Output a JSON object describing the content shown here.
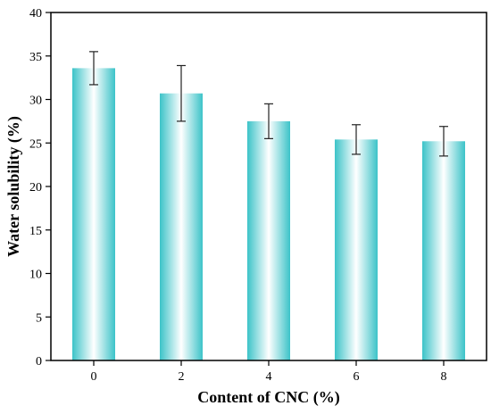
{
  "chart_data": {
    "type": "bar",
    "title": "",
    "xlabel": "Content of CNC (%)",
    "ylabel": "Water solubility (%)",
    "categories": [
      "0",
      "2",
      "4",
      "6",
      "8"
    ],
    "values": [
      33.6,
      30.7,
      27.5,
      25.4,
      25.2
    ],
    "errors": [
      1.9,
      3.2,
      2.0,
      1.7,
      1.7
    ],
    "ylim": [
      0,
      40
    ],
    "yticks": [
      0,
      5,
      10,
      15,
      20,
      25,
      30,
      35,
      40
    ],
    "grid": false,
    "legend": "none",
    "bar_color": "#3cc3c8",
    "bar_highlight": "#ffffff"
  }
}
